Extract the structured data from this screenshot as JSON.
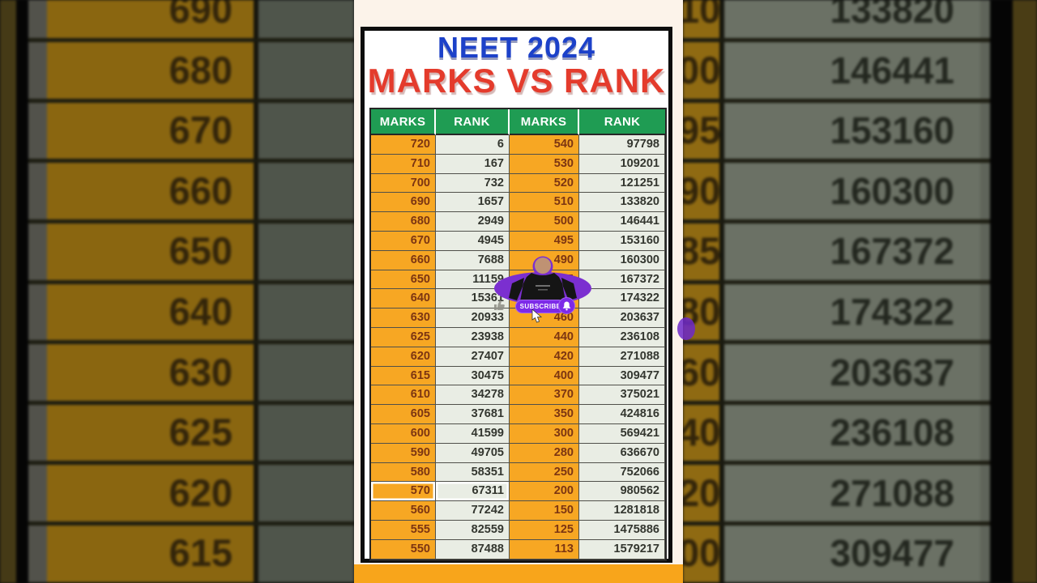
{
  "header": {
    "title_line1": "NEET 2024",
    "title_line2": "MARKS VS RANK"
  },
  "chart_data": {
    "type": "table",
    "title": "NEET 2024 MARKS VS RANK",
    "columns": [
      "MARKS",
      "RANK",
      "MARKS",
      "RANK"
    ],
    "rows": [
      [
        "720",
        "6",
        "540",
        "97798"
      ],
      [
        "710",
        "167",
        "530",
        "109201"
      ],
      [
        "700",
        "732",
        "520",
        "121251"
      ],
      [
        "690",
        "1657",
        "510",
        "133820"
      ],
      [
        "680",
        "2949",
        "500",
        "146441"
      ],
      [
        "670",
        "4945",
        "495",
        "153160"
      ],
      [
        "660",
        "7688",
        "490",
        "160300"
      ],
      [
        "650",
        "11159",
        "485",
        "167372"
      ],
      [
        "640",
        "15361",
        "480",
        "174322"
      ],
      [
        "630",
        "20933",
        "460",
        "203637"
      ],
      [
        "625",
        "23938",
        "440",
        "236108"
      ],
      [
        "620",
        "27407",
        "420",
        "271088"
      ],
      [
        "615",
        "30475",
        "400",
        "309477"
      ],
      [
        "610",
        "34278",
        "370",
        "375021"
      ],
      [
        "605",
        "37681",
        "350",
        "424816"
      ],
      [
        "600",
        "41599",
        "300",
        "569421"
      ],
      [
        "590",
        "49705",
        "280",
        "636670"
      ],
      [
        "580",
        "58351",
        "250",
        "752066"
      ],
      [
        "570",
        "67311",
        "200",
        "980562"
      ],
      [
        "560",
        "77242",
        "150",
        "1281818"
      ],
      [
        "555",
        "82559",
        "125",
        "1475886"
      ],
      [
        "550",
        "87488",
        "113",
        "1579217"
      ]
    ],
    "selected_row_mark": "570"
  },
  "overlay": {
    "subscribe_label": "SUBSCRIBE"
  },
  "background": {
    "left_marks": [
      "690",
      "680",
      "670",
      "660",
      "650",
      "640",
      "630",
      "625",
      "620",
      "615"
    ],
    "right_marks_partial": [
      "10",
      "00",
      "95",
      "90",
      "85",
      "80",
      "60",
      "40",
      "20",
      "00"
    ],
    "right_ranks": [
      "133820",
      "146441",
      "153160",
      "160300",
      "167372",
      "174322",
      "203637",
      "236108",
      "271088",
      "309477"
    ]
  },
  "colors": {
    "header_green": "#1f9c53",
    "marks_cell_orange": "#f7a723",
    "rank_cell_gray": "#e9ede4",
    "title_blue": "#1c41c9",
    "title_red": "#e43b2c",
    "subscribe_purple": "#7d2ae8",
    "bottom_bar_orange": "#f8a51b"
  }
}
